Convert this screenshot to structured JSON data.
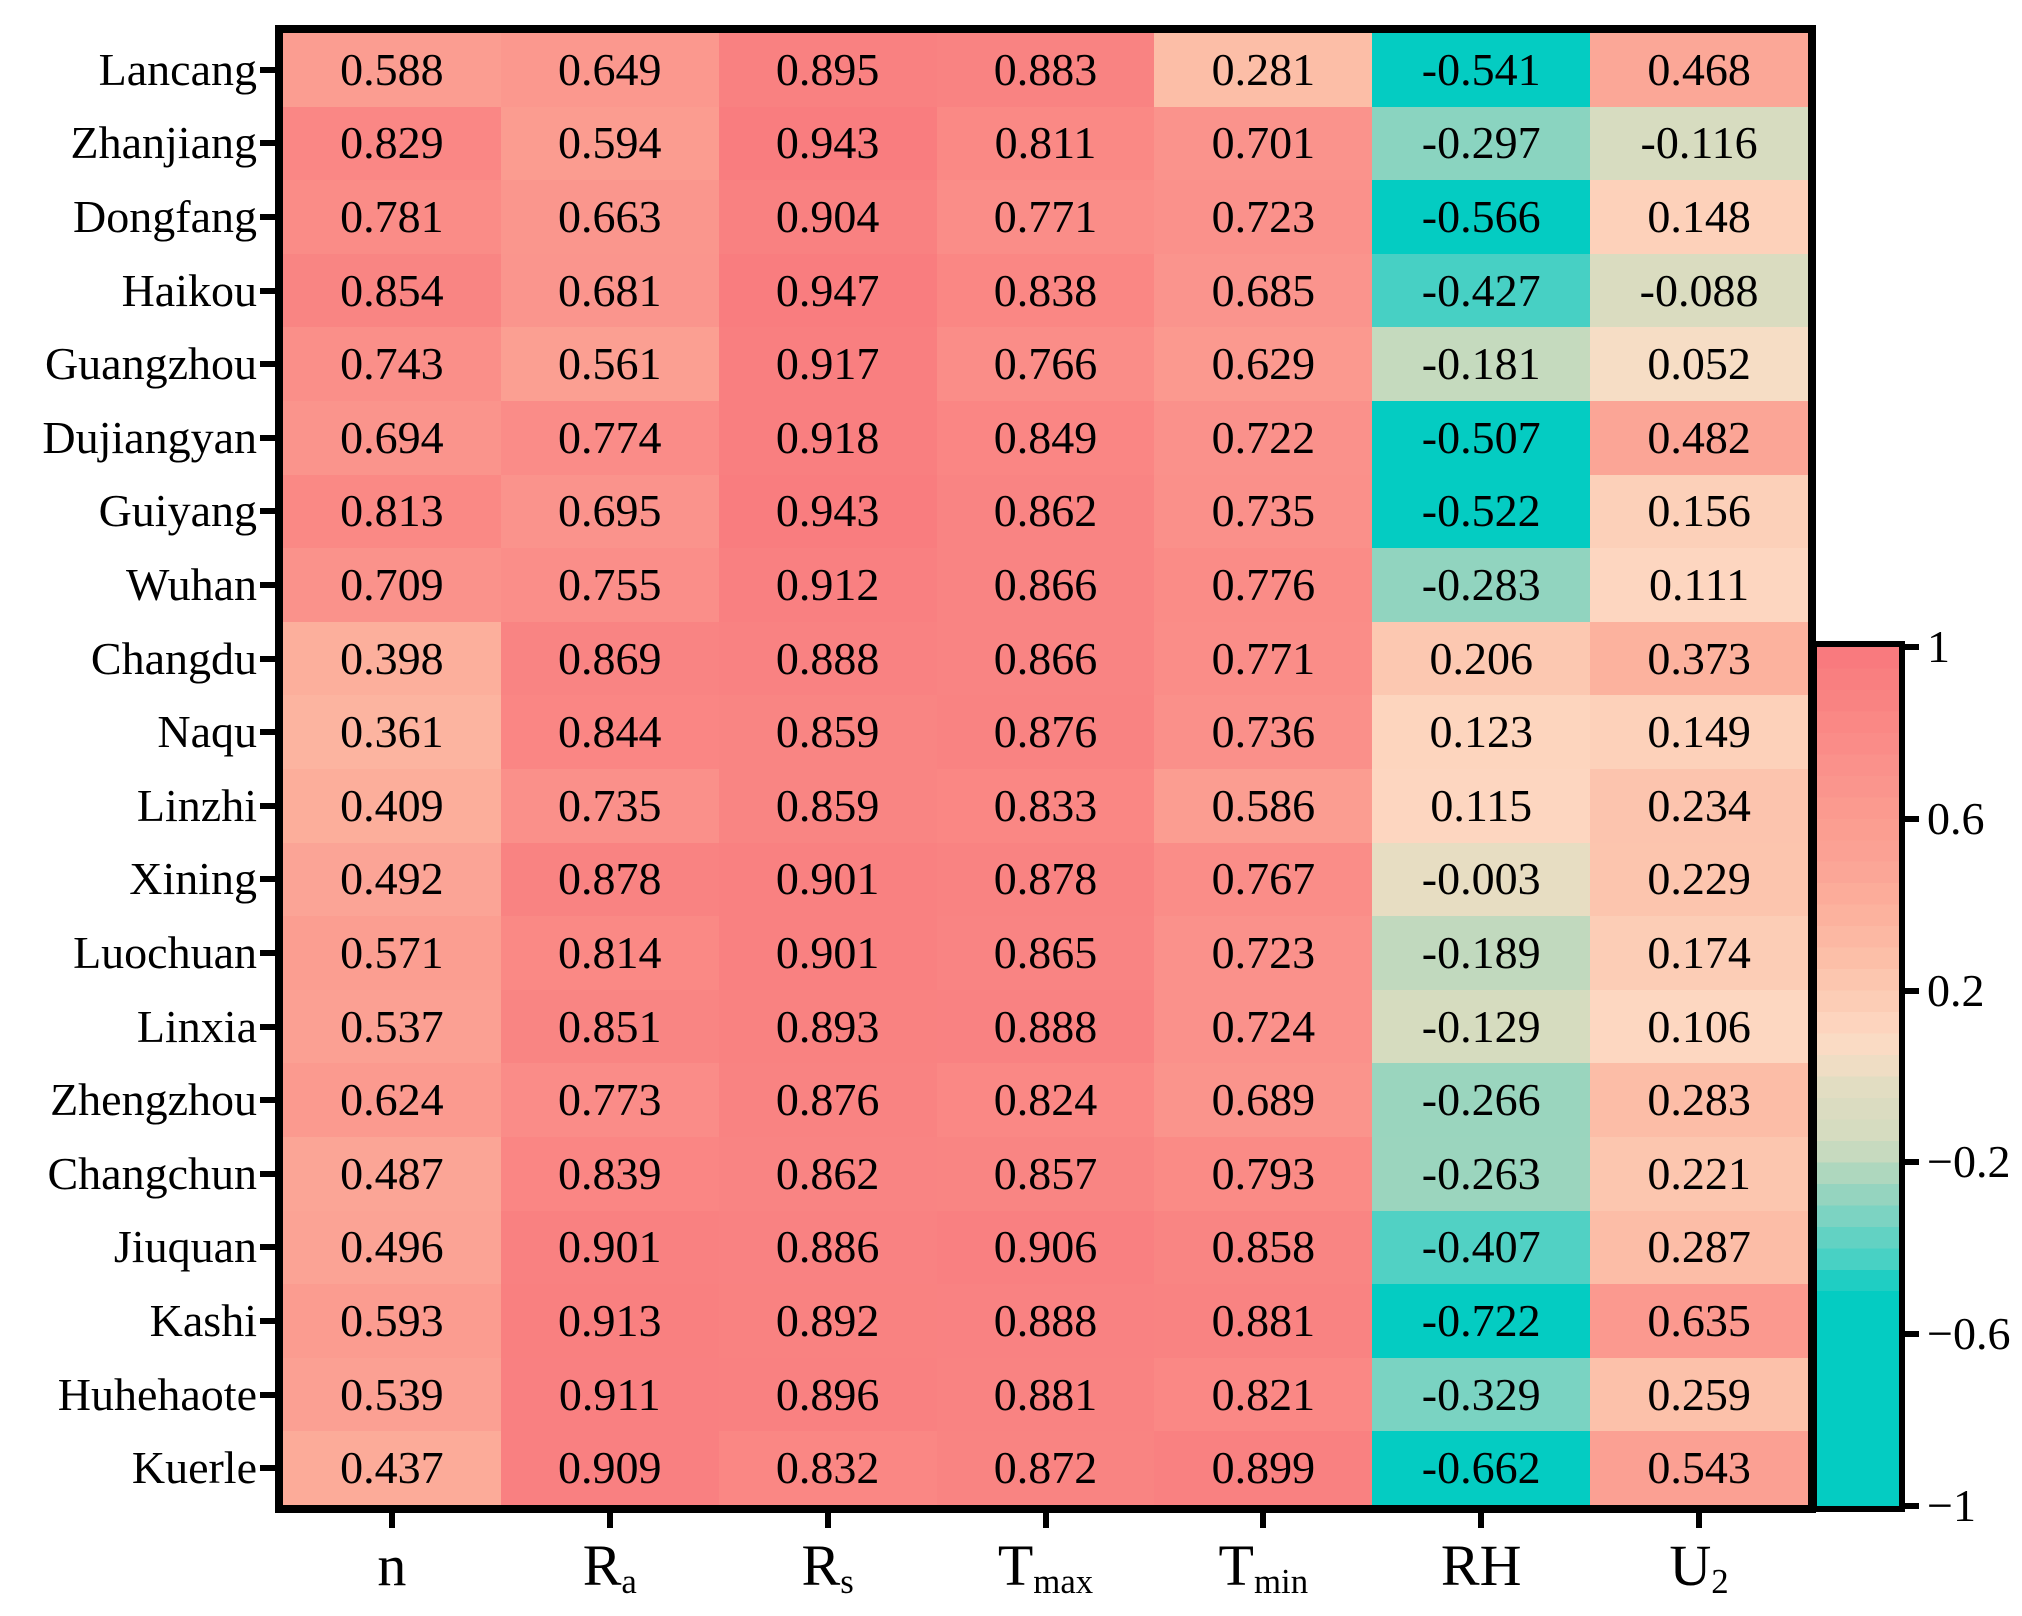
{
  "figure": {
    "background": "#ffffff",
    "text_color": "#000000",
    "axis_color": "#000000"
  },
  "chart_data": {
    "type": "heatmap",
    "title": "",
    "xlabel": "",
    "ylabel": "",
    "rows": [
      "Lancang",
      "Zhanjiang",
      "Dongfang",
      "Haikou",
      "Guangzhou",
      "Dujiangyan",
      "Guiyang",
      "Wuhan",
      "Changdu",
      "Naqu",
      "Linzhi",
      "Xining",
      "Luochuan",
      "Linxia",
      "Zhengzhou",
      "Changchun",
      "Jiuquan",
      "Kashi",
      "Huhehaote",
      "Kuerle"
    ],
    "columns": [
      {
        "base": "n",
        "sub": ""
      },
      {
        "base": "R",
        "sub": "a"
      },
      {
        "base": "R",
        "sub": "s"
      },
      {
        "base": "T",
        "sub": "max"
      },
      {
        "base": "T",
        "sub": "min"
      },
      {
        "base": "RH",
        "sub": ""
      },
      {
        "base": "U",
        "sub": "2"
      }
    ],
    "values": [
      [
        0.588,
        0.649,
        0.895,
        0.883,
        0.281,
        -0.541,
        0.468
      ],
      [
        0.829,
        0.594,
        0.943,
        0.811,
        0.701,
        -0.297,
        -0.116
      ],
      [
        0.781,
        0.663,
        0.904,
        0.771,
        0.723,
        -0.566,
        0.148
      ],
      [
        0.854,
        0.681,
        0.947,
        0.838,
        0.685,
        -0.427,
        -0.088
      ],
      [
        0.743,
        0.561,
        0.917,
        0.766,
        0.629,
        -0.181,
        0.052
      ],
      [
        0.694,
        0.774,
        0.918,
        0.849,
        0.722,
        -0.507,
        0.482
      ],
      [
        0.813,
        0.695,
        0.943,
        0.862,
        0.735,
        -0.522,
        0.156
      ],
      [
        0.709,
        0.755,
        0.912,
        0.866,
        0.776,
        -0.283,
        0.111
      ],
      [
        0.398,
        0.869,
        0.888,
        0.866,
        0.771,
        0.206,
        0.373
      ],
      [
        0.361,
        0.844,
        0.859,
        0.876,
        0.736,
        0.123,
        0.149
      ],
      [
        0.409,
        0.735,
        0.859,
        0.833,
        0.586,
        0.115,
        0.234
      ],
      [
        0.492,
        0.878,
        0.901,
        0.878,
        0.767,
        -0.003,
        0.229
      ],
      [
        0.571,
        0.814,
        0.901,
        0.865,
        0.723,
        -0.189,
        0.174
      ],
      [
        0.537,
        0.851,
        0.893,
        0.888,
        0.724,
        -0.129,
        0.106
      ],
      [
        0.624,
        0.773,
        0.876,
        0.824,
        0.689,
        -0.266,
        0.283
      ],
      [
        0.487,
        0.839,
        0.862,
        0.857,
        0.793,
        -0.263,
        0.221
      ],
      [
        0.496,
        0.901,
        0.886,
        0.906,
        0.858,
        -0.407,
        0.287
      ],
      [
        0.593,
        0.913,
        0.892,
        0.888,
        0.881,
        -0.722,
        0.635
      ],
      [
        0.539,
        0.911,
        0.896,
        0.881,
        0.821,
        -0.329,
        0.259
      ],
      [
        0.437,
        0.909,
        0.832,
        0.872,
        0.899,
        -0.662,
        0.543
      ]
    ],
    "value_format_decimals": 3,
    "vmin": -1,
    "vmax": 1,
    "grid": false,
    "legend_position": "right-colorbar",
    "colorbar": {
      "tick_labels": [
        "1",
        "0.6",
        "0.2",
        "−0.2",
        "−0.6",
        "−1"
      ],
      "tick_values": [
        1,
        0.6,
        0.2,
        -0.2,
        -0.6,
        -1
      ],
      "bin_size": 0.05
    },
    "colormap_stops": [
      {
        "v": -1.0,
        "c": "#04ccc2"
      },
      {
        "v": -0.5,
        "c": "#04ccc2"
      },
      {
        "v": -0.45,
        "c": "#3bd0c4"
      },
      {
        "v": -0.35,
        "c": "#6fd2c3"
      },
      {
        "v": -0.25,
        "c": "#a2d5bd"
      },
      {
        "v": -0.15,
        "c": "#d4dcbf"
      },
      {
        "v": -0.05,
        "c": "#dddcc1"
      },
      {
        "v": 0.0,
        "c": "#e8ddc2"
      },
      {
        "v": 0.05,
        "c": "#f6ddc5"
      },
      {
        "v": 0.1,
        "c": "#fdd8c2"
      },
      {
        "v": 0.2,
        "c": "#fcc9b2"
      },
      {
        "v": 0.3,
        "c": "#fcbba5"
      },
      {
        "v": 0.4,
        "c": "#fcaf9c"
      },
      {
        "v": 0.5,
        "c": "#fba395"
      },
      {
        "v": 0.6,
        "c": "#fb9c90"
      },
      {
        "v": 0.7,
        "c": "#fa938c"
      },
      {
        "v": 0.8,
        "c": "#fa8a86"
      },
      {
        "v": 0.9,
        "c": "#f98181"
      },
      {
        "v": 1.0,
        "c": "#f9787d"
      }
    ]
  }
}
